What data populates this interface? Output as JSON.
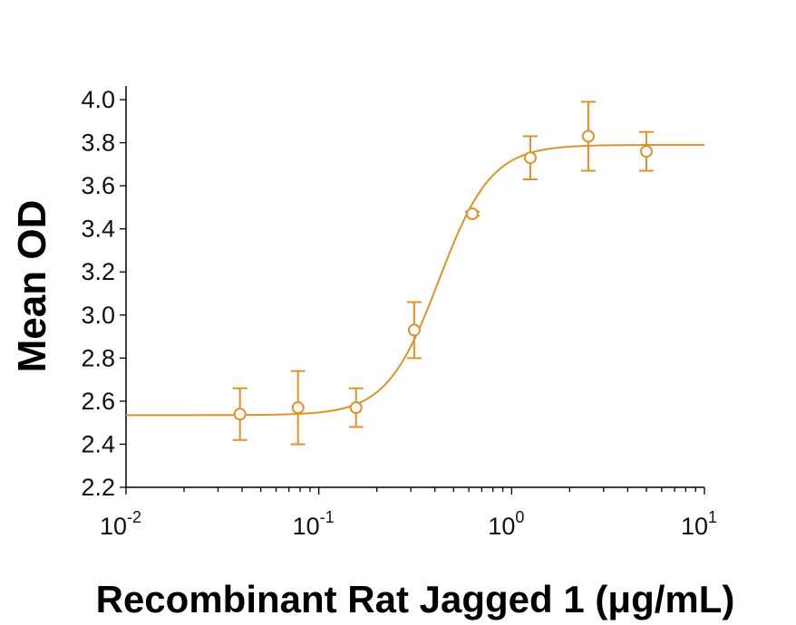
{
  "chart_data": {
    "type": "scatter",
    "title": "",
    "xlabel": "Recombinant Rat Jagged 1 (μg/mL)",
    "ylabel": "Mean OD",
    "x_scale": "log",
    "xlim": [
      0.01,
      10
    ],
    "ylim": [
      2.2,
      4.0
    ],
    "x_ticks": [
      {
        "base": "10",
        "exp": "-2"
      },
      {
        "base": "10",
        "exp": "-1"
      },
      {
        "base": "10",
        "exp": "0"
      },
      {
        "base": "10",
        "exp": "1"
      }
    ],
    "y_ticks": [
      "2.2",
      "2.4",
      "2.6",
      "2.8",
      "3.0",
      "3.2",
      "3.4",
      "3.6",
      "3.8",
      "4.0"
    ],
    "grid": false,
    "color": "#e0912a",
    "series": [
      {
        "points": [
          {
            "x": 0.039,
            "y": 2.54,
            "err": 0.12
          },
          {
            "x": 0.078,
            "y": 2.57,
            "err": 0.17
          },
          {
            "x": 0.156,
            "y": 2.57,
            "err": 0.09
          },
          {
            "x": 0.3125,
            "y": 2.93,
            "err": 0.13
          },
          {
            "x": 0.625,
            "y": 3.47,
            "err": 0.01
          },
          {
            "x": 1.25,
            "y": 3.73,
            "err": 0.1
          },
          {
            "x": 2.5,
            "y": 3.83,
            "err": 0.16
          },
          {
            "x": 5.0,
            "y": 3.76,
            "err": 0.09
          }
        ],
        "fit": {
          "model": "4PL",
          "bottom": 2.535,
          "top": 3.79,
          "ec50": 0.42,
          "hill": 3.2
        }
      }
    ]
  }
}
